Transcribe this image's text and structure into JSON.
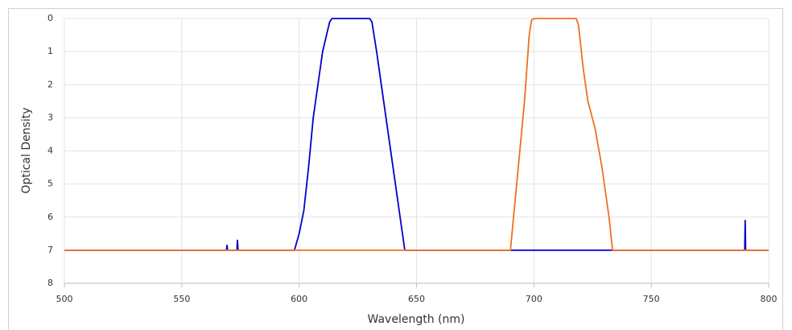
{
  "chart_data": {
    "type": "line",
    "x_label": "Wavelength (nm)",
    "y_label": "Optical Density",
    "xlim": [
      500,
      800
    ],
    "xticks": [
      500,
      550,
      600,
      650,
      700,
      750,
      800
    ],
    "ylim": [
      0,
      8
    ],
    "yticks": [
      0,
      1,
      2,
      3,
      4,
      5,
      6,
      7,
      8
    ],
    "y_inverted": true,
    "grid": true,
    "series": [
      {
        "color": "#0000cc",
        "x": [
          500,
          569,
          569.3,
          569.5,
          573.5,
          573.7,
          574,
          598,
          600,
          602,
          604,
          606,
          608,
          610,
          612,
          613,
          614,
          630,
          631,
          633,
          636,
          639,
          642,
          645,
          789.8,
          790,
          790.2,
          800
        ],
        "values": [
          7,
          7,
          6.85,
          7,
          7,
          6.7,
          7,
          7,
          6.5,
          5.8,
          4.5,
          3,
          2,
          1,
          0.4,
          0.1,
          0,
          0,
          0.1,
          1,
          2.5,
          4,
          5.5,
          7,
          7,
          6.1,
          7,
          7
        ]
      },
      {
        "color": "#f07020",
        "x": [
          500,
          690,
          692,
          694,
          696,
          698,
          699,
          700,
          718,
          719,
          721,
          723,
          726,
          729,
          732,
          733.5,
          800
        ],
        "values": [
          7,
          7,
          5.5,
          4,
          2.5,
          0.5,
          0.05,
          0,
          0,
          0.2,
          1.5,
          2.5,
          3.3,
          4.5,
          6,
          7,
          7
        ]
      }
    ]
  }
}
